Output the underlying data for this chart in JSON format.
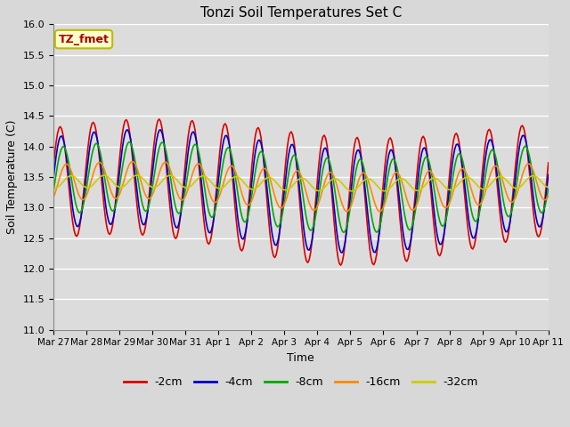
{
  "title": "Tonzi Soil Temperatures Set C",
  "xlabel": "Time",
  "ylabel": "Soil Temperature (C)",
  "ylim": [
    11.0,
    16.0
  ],
  "yticks": [
    11.0,
    11.5,
    12.0,
    12.5,
    13.0,
    13.5,
    14.0,
    14.5,
    15.0,
    15.5,
    16.0
  ],
  "series_labels": [
    "-2cm",
    "-4cm",
    "-8cm",
    "-16cm",
    "-32cm"
  ],
  "series_colors": [
    "#dd0000",
    "#0000cc",
    "#00aa00",
    "#ff8800",
    "#cccc00"
  ],
  "annotation_text": "TZ_fmet",
  "annotation_color": "#aa0000",
  "annotation_bg": "#ffffcc",
  "annotation_border": "#bbbb00",
  "background_color": "#d8d8d8",
  "plot_bg": "#dcdcdc",
  "n_days": 15,
  "xtick_labels": [
    "Mar 27",
    "Mar 28",
    "Mar 29",
    "Mar 30",
    "Mar 31",
    "Apr 1",
    "Apr 2",
    "Apr 3",
    "Apr 4",
    "Apr 5",
    "Apr 6",
    "Apr 7",
    "Apr 8",
    "Apr 9",
    "Apr 10",
    "Apr 11"
  ],
  "xtick_positions": [
    0,
    1,
    2,
    3,
    4,
    5,
    6,
    7,
    8,
    9,
    10,
    11,
    12,
    13,
    14,
    15
  ]
}
